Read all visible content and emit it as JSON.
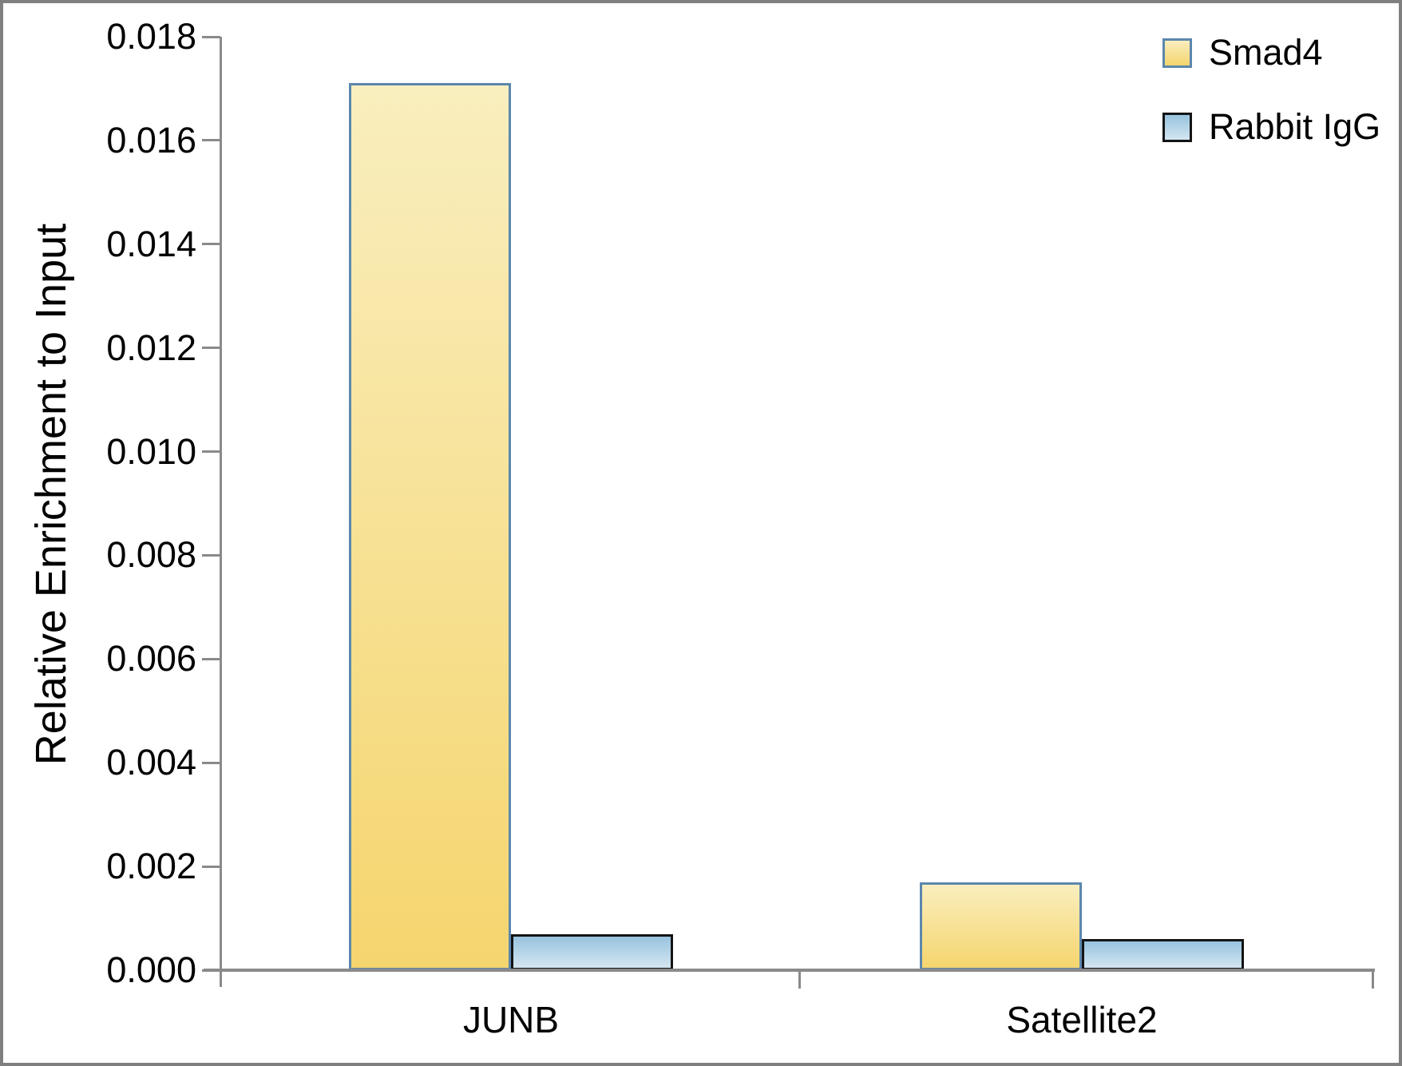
{
  "colors": {
    "smad4_fill_top": "#f9eebe",
    "smad4_fill_bottom": "#f5d56e",
    "smad4_border": "#5b87ad",
    "igg_fill_top": "#97c3df",
    "igg_fill_bottom": "#d4e6f1",
    "igg_border": "#141414",
    "axis": "#8a8a8a",
    "frame": "#7f7f7f",
    "text": "#000000"
  },
  "chart_data": {
    "type": "bar",
    "title": "",
    "xlabel": "",
    "ylabel": "Relative Enrichment to Input",
    "categories": [
      "JUNB",
      "Satellite2"
    ],
    "series": [
      {
        "name": "Smad4",
        "values": [
          0.0171,
          0.0017
        ]
      },
      {
        "name": "Rabbit IgG",
        "values": [
          0.0007,
          0.0006
        ]
      }
    ],
    "ylim": [
      0,
      0.018
    ],
    "ytick_step": 0.002,
    "ytick_labels": [
      "0.000",
      "0.002",
      "0.004",
      "0.006",
      "0.008",
      "0.010",
      "0.012",
      "0.014",
      "0.016",
      "0.018"
    ],
    "grid": false,
    "legend_position": "top-right"
  }
}
